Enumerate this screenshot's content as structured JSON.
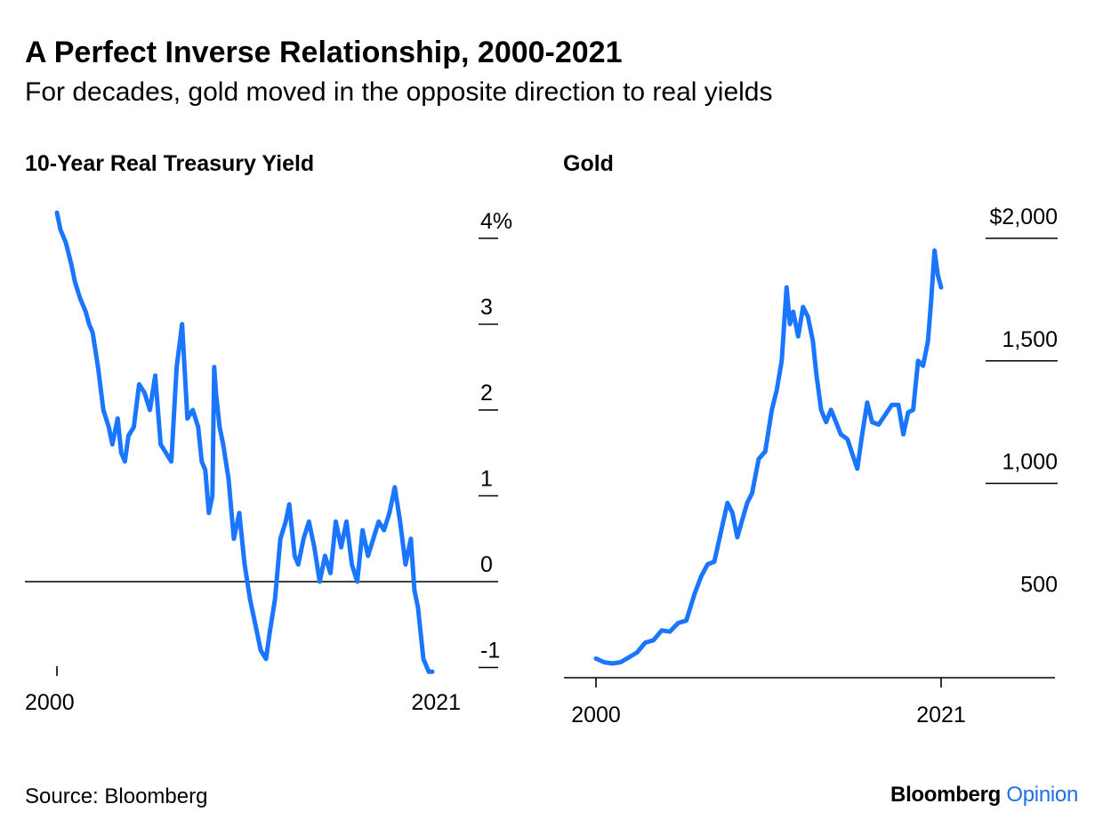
{
  "header": {
    "title": "A Perfect Inverse Relationship, 2000-2021",
    "subtitle": "For decades, gold moved in the opposite direction to real yields"
  },
  "footer": {
    "source": "Source: Bloomberg",
    "brand_primary": "Bloomberg",
    "brand_secondary": "Opinion"
  },
  "colors": {
    "line": "#1a75ff",
    "axis": "#000000",
    "brand_accent": "#1f6fe6"
  },
  "chart_data": [
    {
      "type": "line",
      "title": "10-Year Real Treasury Yield",
      "xlim": [
        2000,
        2021
      ],
      "ylim": [
        -1.2,
        4.3
      ],
      "y_ticks": [
        {
          "value": 4,
          "label": "4%"
        },
        {
          "value": 3,
          "label": "3"
        },
        {
          "value": 2,
          "label": "2"
        },
        {
          "value": 1,
          "label": "1"
        },
        {
          "value": 0,
          "label": "0"
        },
        {
          "value": -1,
          "label": "-1"
        }
      ],
      "x_ticks": [
        {
          "value": 2000,
          "label": "2000"
        },
        {
          "value": 2021,
          "label": "2021"
        }
      ],
      "zero_line": true,
      "series": [
        {
          "color": "#1a75ff",
          "x": [
            2000.0,
            2000.2,
            2000.5,
            2000.8,
            2001.0,
            2001.3,
            2001.6,
            2001.8,
            2002.0,
            2002.3,
            2002.6,
            2002.9,
            2003.1,
            2003.4,
            2003.6,
            2003.8,
            2004.0,
            2004.3,
            2004.6,
            2004.9,
            2005.2,
            2005.5,
            2005.8,
            2006.1,
            2006.4,
            2006.7,
            2007.0,
            2007.3,
            2007.6,
            2007.9,
            2008.1,
            2008.3,
            2008.5,
            2008.7,
            2008.8,
            2008.9,
            2009.1,
            2009.3,
            2009.6,
            2009.9,
            2010.2,
            2010.5,
            2010.8,
            2011.1,
            2011.4,
            2011.7,
            2011.9,
            2012.2,
            2012.5,
            2012.8,
            2013.0,
            2013.3,
            2013.5,
            2013.8,
            2014.1,
            2014.4,
            2014.7,
            2015.0,
            2015.3,
            2015.6,
            2015.9,
            2016.2,
            2016.5,
            2016.8,
            2017.1,
            2017.4,
            2017.7,
            2018.0,
            2018.3,
            2018.6,
            2018.9,
            2019.2,
            2019.5,
            2019.8,
            2020.0,
            2020.2,
            2020.3,
            2020.5,
            2020.8,
            2021.0
          ],
          "y": [
            4.3,
            4.1,
            3.95,
            3.7,
            3.5,
            3.3,
            3.15,
            3.0,
            2.9,
            2.5,
            2.0,
            1.8,
            1.6,
            1.9,
            1.5,
            1.4,
            1.7,
            1.8,
            2.3,
            2.2,
            2.0,
            2.4,
            1.6,
            1.5,
            1.4,
            2.5,
            3.0,
            1.9,
            2.0,
            1.8,
            1.4,
            1.3,
            0.8,
            1.0,
            2.5,
            2.2,
            1.8,
            1.6,
            1.2,
            0.5,
            0.8,
            0.2,
            -0.2,
            -0.5,
            -0.8,
            -0.9,
            -0.6,
            -0.2,
            0.5,
            0.7,
            0.9,
            0.3,
            0.2,
            0.5,
            0.7,
            0.4,
            0.0,
            0.3,
            0.1,
            0.7,
            0.4,
            0.7,
            0.2,
            0.0,
            0.6,
            0.3,
            0.5,
            0.7,
            0.6,
            0.8,
            1.1,
            0.7,
            0.2,
            0.5,
            -0.1,
            -0.3,
            -0.5,
            -0.9,
            -1.05,
            -1.05
          ]
        }
      ]
    },
    {
      "type": "line",
      "title": "Gold",
      "xlim": [
        2000,
        2021
      ],
      "ylim": [
        200,
        2100
      ],
      "y_ticks": [
        {
          "value": 2000,
          "label": "$2,000",
          "gridline": true
        },
        {
          "value": 1500,
          "label": "1,500",
          "gridline": true
        },
        {
          "value": 1000,
          "label": "1,000",
          "gridline": true
        },
        {
          "value": 500,
          "label": "500",
          "gridline": false
        }
      ],
      "x_ticks": [
        {
          "value": 2000,
          "label": "2000"
        },
        {
          "value": 2021,
          "label": "2021"
        }
      ],
      "series": [
        {
          "color": "#1a75ff",
          "x": [
            2000.0,
            2000.5,
            2001.0,
            2001.5,
            2002.0,
            2002.5,
            2003.0,
            2003.5,
            2004.0,
            2004.5,
            2005.0,
            2005.5,
            2006.0,
            2006.4,
            2006.8,
            2007.2,
            2007.6,
            2008.0,
            2008.3,
            2008.6,
            2008.9,
            2009.2,
            2009.5,
            2009.9,
            2010.3,
            2010.7,
            2011.0,
            2011.3,
            2011.6,
            2011.8,
            2012.0,
            2012.3,
            2012.6,
            2012.9,
            2013.2,
            2013.4,
            2013.7,
            2014.0,
            2014.3,
            2014.6,
            2014.9,
            2015.3,
            2015.6,
            2015.9,
            2016.2,
            2016.5,
            2016.8,
            2017.2,
            2017.6,
            2018.0,
            2018.4,
            2018.7,
            2019.0,
            2019.3,
            2019.6,
            2019.9,
            2020.2,
            2020.4,
            2020.6,
            2020.8,
            2021.0
          ],
          "y": [
            285,
            270,
            265,
            270,
            290,
            310,
            350,
            360,
            400,
            395,
            430,
            440,
            550,
            620,
            670,
            680,
            800,
            920,
            880,
            780,
            850,
            920,
            960,
            1100,
            1130,
            1300,
            1380,
            1500,
            1800,
            1650,
            1700,
            1600,
            1720,
            1680,
            1580,
            1450,
            1300,
            1250,
            1300,
            1250,
            1200,
            1180,
            1120,
            1060,
            1200,
            1330,
            1250,
            1240,
            1280,
            1320,
            1320,
            1200,
            1290,
            1300,
            1500,
            1480,
            1580,
            1750,
            1950,
            1850,
            1800
          ]
        }
      ]
    }
  ]
}
